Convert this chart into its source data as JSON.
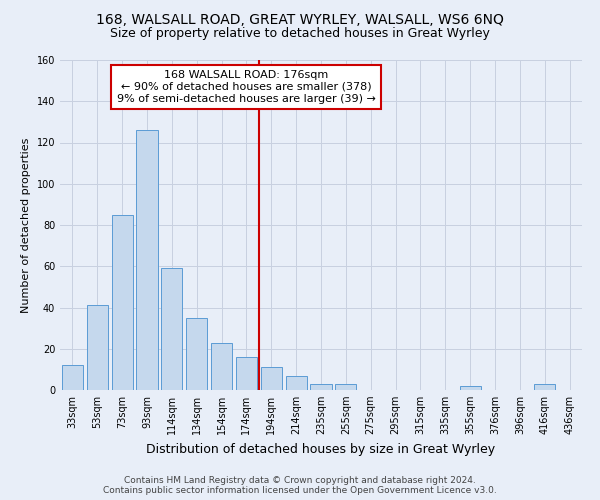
{
  "title": "168, WALSALL ROAD, GREAT WYRLEY, WALSALL, WS6 6NQ",
  "subtitle": "Size of property relative to detached houses in Great Wyrley",
  "xlabel": "Distribution of detached houses by size in Great Wyrley",
  "ylabel": "Number of detached properties",
  "bar_labels": [
    "33sqm",
    "53sqm",
    "73sqm",
    "93sqm",
    "114sqm",
    "134sqm",
    "154sqm",
    "174sqm",
    "194sqm",
    "214sqm",
    "235sqm",
    "255sqm",
    "275sqm",
    "295sqm",
    "315sqm",
    "335sqm",
    "355sqm",
    "376sqm",
    "396sqm",
    "416sqm",
    "436sqm"
  ],
  "bar_values": [
    12,
    41,
    85,
    126,
    59,
    35,
    23,
    16,
    11,
    7,
    3,
    3,
    0,
    0,
    0,
    0,
    2,
    0,
    0,
    3,
    0
  ],
  "bar_color": "#c5d8ed",
  "bar_edge_color": "#5b9bd5",
  "ylim": [
    0,
    160
  ],
  "yticks": [
    0,
    20,
    40,
    60,
    80,
    100,
    120,
    140,
    160
  ],
  "vline_x_index": 7,
  "vline_color": "#cc0000",
  "annotation_line1": "168 WALSALL ROAD: 176sqm",
  "annotation_line2": "← 90% of detached houses are smaller (378)",
  "annotation_line3": "9% of semi-detached houses are larger (39) →",
  "annotation_box_color": "#ffffff",
  "annotation_box_edge": "#cc0000",
  "footer_line1": "Contains HM Land Registry data © Crown copyright and database right 2024.",
  "footer_line2": "Contains public sector information licensed under the Open Government Licence v3.0.",
  "bg_color": "#e8eef8",
  "plot_bg_color": "#e8eef8",
  "grid_color": "#c8d0e0",
  "title_fontsize": 10,
  "subtitle_fontsize": 9,
  "xlabel_fontsize": 9,
  "ylabel_fontsize": 8,
  "tick_fontsize": 7,
  "annotation_fontsize": 8,
  "footer_fontsize": 6.5
}
